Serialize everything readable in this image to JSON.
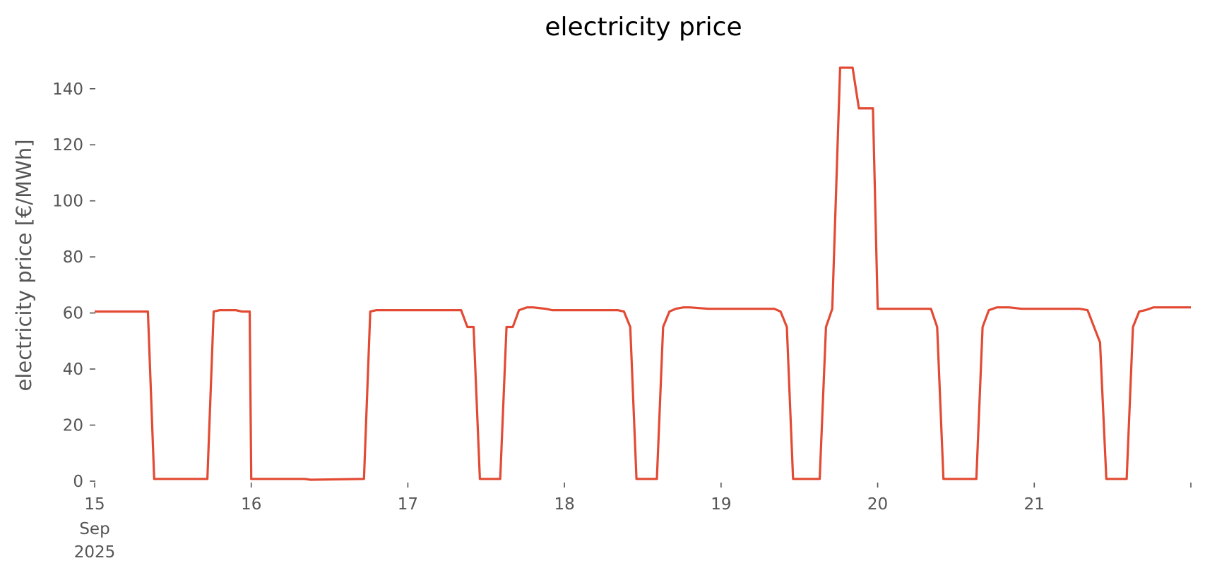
{
  "chart_data": {
    "type": "line",
    "title": "electricity price",
    "xlabel": "",
    "ylabel": "electricity price [€/MWh]",
    "ylim": [
      0,
      150
    ],
    "xlim_days": [
      15,
      22
    ],
    "x_unit": "day of Sep 2025 (fractional)",
    "yticks": [
      0,
      20,
      40,
      60,
      80,
      100,
      120,
      140
    ],
    "ytick_labels": [
      "0",
      "20",
      "40",
      "60",
      "80",
      "100",
      "120",
      "140"
    ],
    "xticks": [
      15,
      16,
      17,
      18,
      19,
      20,
      21,
      22
    ],
    "xtick_labels": [
      "15",
      "16",
      "17",
      "18",
      "19",
      "20",
      "21",
      ""
    ],
    "xtick_sublabels": [
      "Sep",
      "2025"
    ],
    "grid": false,
    "line_color": "#E24A33",
    "series": [
      {
        "x": [
          15.0,
          15.34,
          15.38,
          15.72,
          15.76,
          15.8,
          15.9,
          15.94,
          15.99,
          16.0,
          16.34,
          16.38,
          16.72,
          16.76,
          16.8,
          17.34,
          17.38,
          17.42,
          17.46,
          17.59,
          17.63,
          17.67,
          17.71,
          17.76,
          17.8,
          17.88,
          17.92,
          17.97,
          18.0,
          18.34,
          18.38,
          18.42,
          18.46,
          18.59,
          18.63,
          18.67,
          18.71,
          18.76,
          18.8,
          18.92,
          18.97,
          19.0,
          19.34,
          19.38,
          19.42,
          19.46,
          19.63,
          19.67,
          19.71,
          19.76,
          19.84,
          19.88,
          19.97,
          20.0,
          20.34,
          20.38,
          20.42,
          20.63,
          20.67,
          20.71,
          20.76,
          20.8,
          20.84,
          20.92,
          20.97,
          21.0,
          21.29,
          21.34,
          21.42,
          21.46,
          21.59,
          21.63,
          21.67,
          21.71,
          21.76,
          21.8,
          22.0
        ],
        "y": [
          60.5,
          60.5,
          0.8,
          0.8,
          60.5,
          61,
          61,
          60.5,
          60.5,
          0.8,
          0.8,
          0.5,
          0.8,
          60.5,
          61,
          61,
          55,
          55,
          0.8,
          0.8,
          55,
          55,
          61,
          62,
          62,
          61.5,
          61,
          61,
          61,
          61,
          60.5,
          55,
          0.8,
          0.8,
          55,
          60.5,
          61.5,
          62,
          62,
          61.5,
          61.5,
          61.5,
          61.5,
          60.5,
          55,
          0.8,
          0.8,
          55,
          61.5,
          147.5,
          147.5,
          133,
          133,
          61.5,
          61.5,
          55,
          0.8,
          0.8,
          55,
          61,
          62,
          62,
          62,
          61.5,
          61.5,
          61.5,
          61.5,
          61,
          49.5,
          0.8,
          0.8,
          55,
          60.5,
          61,
          62,
          62,
          62
        ]
      }
    ]
  }
}
